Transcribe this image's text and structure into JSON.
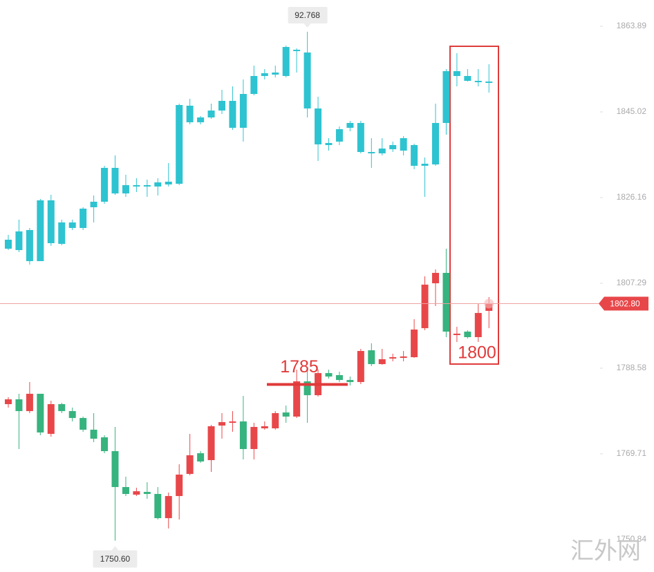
{
  "chart_data": {
    "type": "candlestick",
    "ylim": [
      1743.69,
      1869.67
    ],
    "yticks": [
      1863.89,
      1845.02,
      1826.16,
      1807.29,
      1788.58,
      1769.71,
      1750.84
    ],
    "y2lim": [
      88.858,
      92.998
    ],
    "series": [
      {
        "axis": "y2",
        "color": "#2ec3d0",
        "open": [
          91.198,
          91.188,
          91.108,
          91.108,
          91.238,
          91.233,
          91.348,
          91.348,
          91.498,
          91.538,
          91.598,
          91.598,
          91.648,
          91.648,
          91.648,
          91.663,
          91.668,
          92.113,
          92.113,
          92.148,
          92.198,
          92.073,
          92.073,
          92.318,
          92.448,
          92.458,
          92.448,
          92.628,
          92.618,
          92.213,
          91.963,
          91.973,
          92.073,
          92.108,
          91.898,
          91.888,
          91.918,
          91.998,
          91.948,
          91.813,
          91.808,
          92.108,
          92.483,
          92.448,
          92.413,
          92.408
        ],
        "high": [
          91.298,
          91.408,
          91.348,
          91.558,
          91.588,
          91.408,
          91.408,
          91.498,
          91.583,
          91.798,
          91.873,
          91.733,
          91.708,
          91.698,
          91.708,
          91.818,
          92.248,
          92.283,
          92.158,
          92.248,
          92.348,
          92.373,
          92.423,
          92.523,
          92.498,
          92.523,
          92.668,
          92.648,
          92.768,
          92.298,
          91.998,
          92.083,
          92.123,
          92.123,
          91.998,
          91.998,
          91.973,
          92.013,
          91.958,
          91.858,
          92.248,
          92.498,
          92.613,
          92.498,
          92.498,
          92.533
        ],
        "low": [
          91.188,
          91.173,
          91.083,
          91.108,
          91.218,
          91.223,
          91.333,
          91.333,
          91.388,
          91.523,
          91.588,
          91.573,
          91.608,
          91.573,
          91.583,
          91.648,
          91.658,
          92.098,
          92.098,
          92.138,
          92.173,
          92.058,
          91.973,
          92.308,
          92.423,
          92.438,
          92.438,
          92.473,
          92.148,
          91.833,
          91.908,
          91.948,
          92.048,
          91.888,
          91.783,
          91.873,
          91.898,
          91.873,
          91.773,
          91.573,
          91.798,
          92.023,
          92.373,
          92.408,
          92.373,
          92.328
        ],
        "close": [
          91.263,
          91.323,
          91.333,
          91.548,
          91.548,
          91.388,
          91.388,
          91.488,
          91.538,
          91.783,
          91.783,
          91.658,
          91.658,
          91.658,
          91.678,
          91.683,
          92.238,
          92.233,
          92.148,
          92.198,
          92.268,
          92.268,
          92.318,
          92.448,
          92.468,
          92.473,
          92.658,
          92.638,
          92.213,
          91.953,
          91.948,
          92.063,
          92.108,
          91.898,
          91.888,
          91.923,
          91.948,
          91.908,
          91.798,
          91.798,
          92.108,
          92.483,
          92.448,
          92.413,
          92.403,
          92.398
        ]
      },
      {
        "up_color": "#e8474a",
        "down_color": "#36b37e",
        "open": [
          1780.66,
          1781.72,
          1779.13,
          1782.94,
          1774.11,
          1780.66,
          1779.13,
          1777.61,
          1775.03,
          1773.35,
          1770.31,
          1762.4,
          1760.72,
          1761.33,
          1760.88,
          1755.55,
          1760.42,
          1765.29,
          1769.85,
          1768.33,
          1775.94,
          1776.55,
          1776.85,
          1770.77,
          1775.33,
          1775.33,
          1778.83,
          1777.92,
          1785.68,
          1782.63,
          1787.5,
          1787.05,
          1785.98,
          1785.53,
          1792.52,
          1789.48,
          1790.7,
          1790.85,
          1791.0,
          1797.39,
          1807.28,
          1809.57,
          1795.87,
          1796.63,
          1795.42,
          1801.2
        ],
        "high": [
          1782.18,
          1782.94,
          1785.53,
          1782.94,
          1781.42,
          1780.96,
          1779.9,
          1777.92,
          1778.68,
          1773.81,
          1775.64,
          1764.68,
          1762.25,
          1763.46,
          1762.4,
          1761.18,
          1767.42,
          1774.11,
          1770.31,
          1776.09,
          1778.68,
          1779.13,
          1782.48,
          1776.55,
          1776.85,
          1779.13,
          1780.35,
          1788.26,
          1788.26,
          1788.26,
          1788.26,
          1787.81,
          1786.74,
          1792.83,
          1794.05,
          1792.83,
          1791.76,
          1792.37,
          1799.37,
          1808.81,
          1810.33,
          1814.89,
          1797.7,
          1796.94,
          1802.72,
          1804.24
        ],
        "low": [
          1779.9,
          1770.77,
          1778.68,
          1773.81,
          1773.5,
          1778.68,
          1776.85,
          1774.57,
          1772.29,
          1769.85,
          1750.6,
          1760.42,
          1760.42,
          1759.81,
          1755.25,
          1753.27,
          1755.25,
          1764.98,
          1767.72,
          1765.74,
          1773.05,
          1774.57,
          1768.48,
          1768.48,
          1775.03,
          1775.03,
          1776.55,
          1777.61,
          1776.55,
          1782.33,
          1786.29,
          1785.53,
          1784.76,
          1785.07,
          1789.03,
          1789.33,
          1790.09,
          1790.09,
          1790.85,
          1796.94,
          1802.26,
          1795.42,
          1794.35,
          1795.11,
          1794.35,
          1797.39
        ],
        "close": [
          1781.72,
          1779.13,
          1782.94,
          1774.42,
          1780.66,
          1779.13,
          1777.61,
          1775.03,
          1773.05,
          1770.31,
          1762.4,
          1760.88,
          1761.48,
          1760.88,
          1755.55,
          1760.42,
          1765.14,
          1769.4,
          1768.03,
          1775.79,
          1776.7,
          1776.85,
          1770.77,
          1775.64,
          1775.79,
          1778.68,
          1777.92,
          1785.68,
          1782.63,
          1787.5,
          1786.74,
          1785.98,
          1785.53,
          1792.37,
          1789.48,
          1790.55,
          1791.0,
          1791.16,
          1797.09,
          1806.98,
          1809.57,
          1796.63,
          1796.18,
          1795.42,
          1800.74,
          1802.8
        ]
      }
    ],
    "last_price": {
      "value": 1802.8,
      "label": "1802.80"
    },
    "high_callout": 92.768,
    "low_callout": {
      "value": 1750.6,
      "label": "1750.60"
    },
    "level": 1785,
    "target": 1800,
    "watermark": "汇外网"
  }
}
